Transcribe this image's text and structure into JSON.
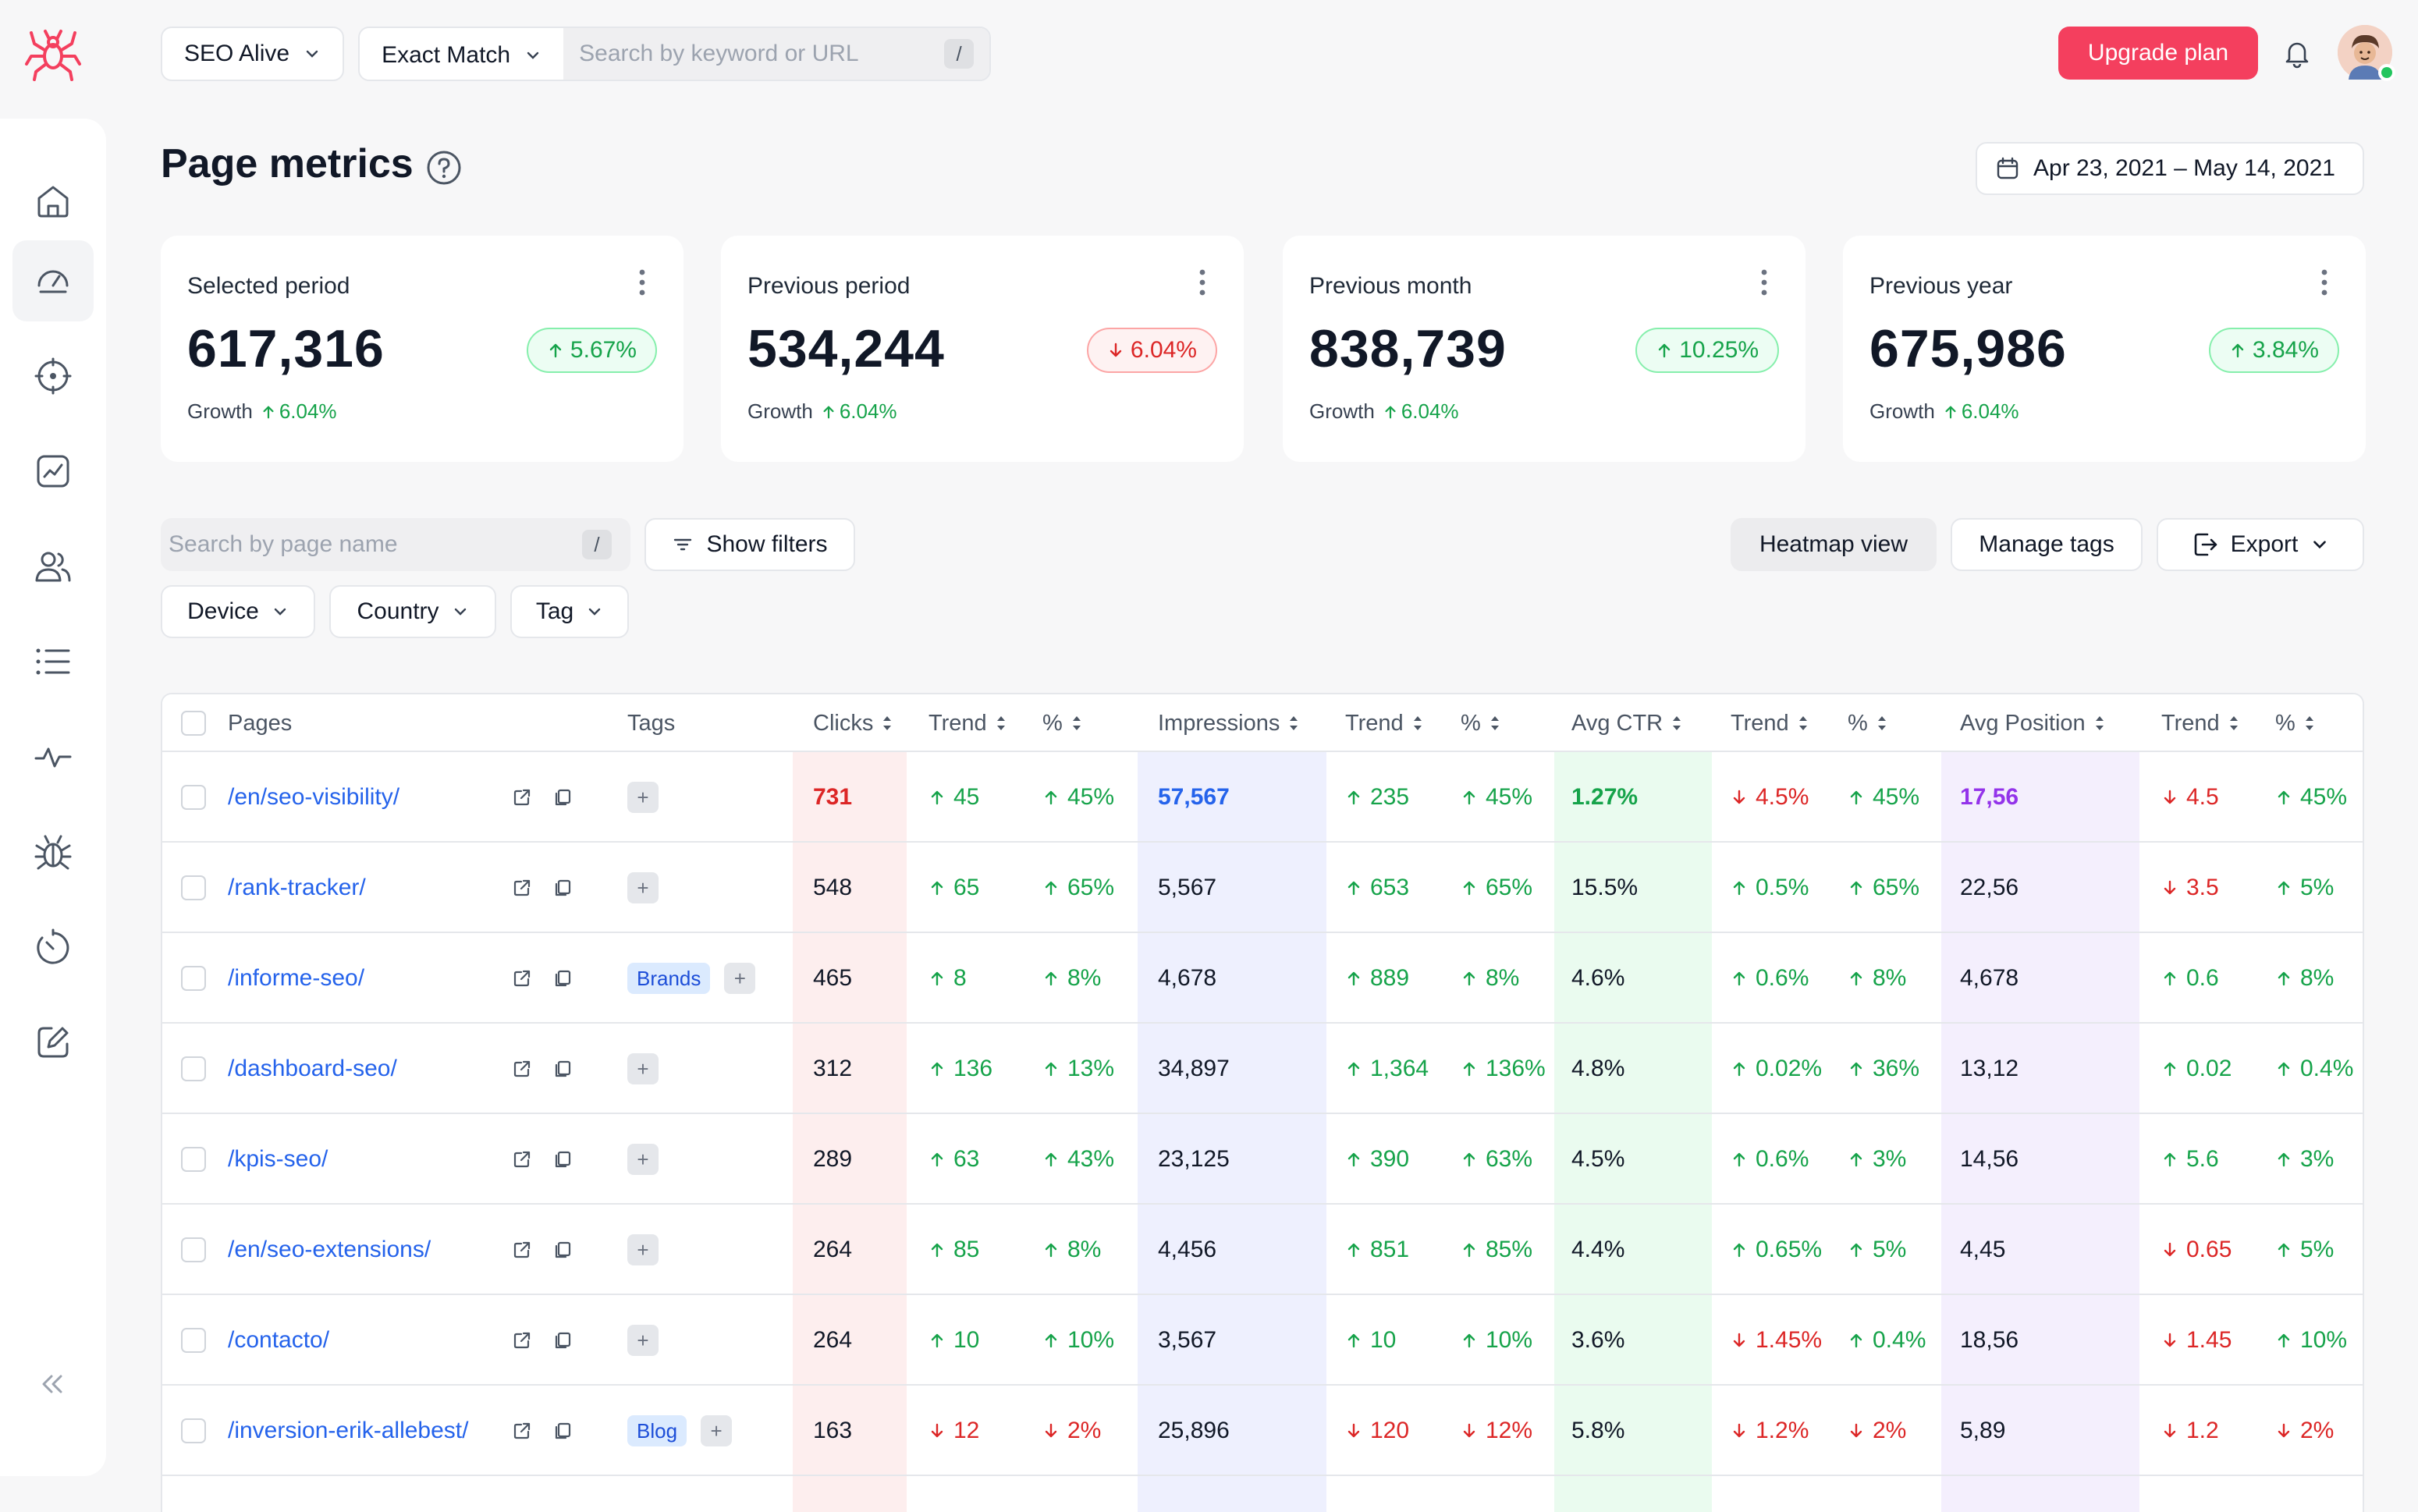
{
  "topbar": {
    "project": "SEO Alive",
    "match_type": "Exact Match",
    "search_placeholder": "Search by keyword or URL",
    "shortcut": "/",
    "upgrade_label": "Upgrade plan"
  },
  "colors": {
    "brand": "#f43f5e",
    "positive": "#16a34a",
    "negative": "#dc2626",
    "clicks_band": "#fdeeee",
    "impressions_band": "#eef0fe",
    "ctr_band": "#eafbef",
    "position_band": "#f4effd"
  },
  "page": {
    "title": "Page metrics",
    "date_range": "Apr 23, 2021 – May 14, 2021"
  },
  "cards": [
    {
      "label": "Selected period",
      "value": "617,316",
      "change": "5.67%",
      "direction": "up",
      "growth_label": "Growth",
      "growth": "6.04%"
    },
    {
      "label": "Previous period",
      "value": "534,244",
      "change": "6.04%",
      "direction": "down",
      "growth_label": "Growth",
      "growth": "6.04%"
    },
    {
      "label": "Previous month",
      "value": "838,739",
      "change": "10.25%",
      "direction": "up",
      "growth_label": "Growth",
      "growth": "6.04%"
    },
    {
      "label": "Previous year",
      "value": "675,986",
      "change": "3.84%",
      "direction": "up",
      "growth_label": "Growth",
      "growth": "6.04%"
    }
  ],
  "filters": {
    "search_placeholder": "Search by page name",
    "shortcut": "/",
    "show_filters": "Show filters",
    "heatmap": "Heatmap view",
    "manage_tags": "Manage tags",
    "export": "Export",
    "device": "Device",
    "country": "Country",
    "tag": "Tag"
  },
  "table": {
    "headers": {
      "pages": "Pages",
      "tags": "Tags",
      "clicks": "Clicks",
      "trend1": "Trend",
      "pct1": "%",
      "impressions": "Impressions",
      "trend2": "Trend",
      "pct2": "%",
      "ctr": "Avg CTR",
      "trend3": "Trend",
      "pct3": "%",
      "position": "Avg Position",
      "trend4": "Trend",
      "pct4": "%"
    },
    "rows": [
      {
        "page": "/en/seo-visibility/",
        "tags": [],
        "clicks": "731",
        "c_trend": "45",
        "c_trend_dir": "up",
        "c_pct": "45%",
        "c_pct_dir": "up",
        "impressions": "57,567",
        "i_trend": "235",
        "i_trend_dir": "up",
        "i_pct": "45%",
        "i_pct_dir": "up",
        "ctr": "1.27%",
        "ctr_trend": "4.5%",
        "ctr_trend_dir": "down",
        "ctr_pct": "45%",
        "ctr_pct_dir": "up",
        "position": "17,56",
        "p_trend": "4.5",
        "p_trend_dir": "down",
        "p_pct": "45%",
        "p_pct_dir": "up"
      },
      {
        "page": "/rank-tracker/",
        "tags": [],
        "clicks": "548",
        "c_trend": "65",
        "c_trend_dir": "up",
        "c_pct": "65%",
        "c_pct_dir": "up",
        "impressions": "5,567",
        "i_trend": "653",
        "i_trend_dir": "up",
        "i_pct": "65%",
        "i_pct_dir": "up",
        "ctr": "15.5%",
        "ctr_trend": "0.5%",
        "ctr_trend_dir": "up",
        "ctr_pct": "65%",
        "ctr_pct_dir": "up",
        "position": "22,56",
        "p_trend": "3.5",
        "p_trend_dir": "down",
        "p_pct": "5%",
        "p_pct_dir": "up"
      },
      {
        "page": "/informe-seo/",
        "tags": [
          "Brands"
        ],
        "clicks": "465",
        "c_trend": "8",
        "c_trend_dir": "up",
        "c_pct": "8%",
        "c_pct_dir": "up",
        "impressions": "4,678",
        "i_trend": "889",
        "i_trend_dir": "up",
        "i_pct": "8%",
        "i_pct_dir": "up",
        "ctr": "4.6%",
        "ctr_trend": "0.6%",
        "ctr_trend_dir": "up",
        "ctr_pct": "8%",
        "ctr_pct_dir": "up",
        "position": "4,678",
        "p_trend": "0.6",
        "p_trend_dir": "up",
        "p_pct": "8%",
        "p_pct_dir": "up"
      },
      {
        "page": "/dashboard-seo/",
        "tags": [],
        "clicks": "312",
        "c_trend": "136",
        "c_trend_dir": "up",
        "c_pct": "13%",
        "c_pct_dir": "up",
        "impressions": "34,897",
        "i_trend": "1,364",
        "i_trend_dir": "up",
        "i_pct": "136%",
        "i_pct_dir": "up",
        "ctr": "4.8%",
        "ctr_trend": "0.02%",
        "ctr_trend_dir": "up",
        "ctr_pct": "36%",
        "ctr_pct_dir": "up",
        "position": "13,12",
        "p_trend": "0.02",
        "p_trend_dir": "up",
        "p_pct": "0.4%",
        "p_pct_dir": "up"
      },
      {
        "page": "/kpis-seo/",
        "tags": [],
        "clicks": "289",
        "c_trend": "63",
        "c_trend_dir": "up",
        "c_pct": "43%",
        "c_pct_dir": "up",
        "impressions": "23,125",
        "i_trend": "390",
        "i_trend_dir": "up",
        "i_pct": "63%",
        "i_pct_dir": "up",
        "ctr": "4.5%",
        "ctr_trend": "0.6%",
        "ctr_trend_dir": "up",
        "ctr_pct": "3%",
        "ctr_pct_dir": "up",
        "position": "14,56",
        "p_trend": "5.6",
        "p_trend_dir": "up",
        "p_pct": "3%",
        "p_pct_dir": "up"
      },
      {
        "page": "/en/seo-extensions/",
        "tags": [],
        "clicks": "264",
        "c_trend": "85",
        "c_trend_dir": "up",
        "c_pct": "8%",
        "c_pct_dir": "up",
        "impressions": "4,456",
        "i_trend": "851",
        "i_trend_dir": "up",
        "i_pct": "85%",
        "i_pct_dir": "up",
        "ctr": "4.4%",
        "ctr_trend": "0.65%",
        "ctr_trend_dir": "up",
        "ctr_pct": "5%",
        "ctr_pct_dir": "up",
        "position": "4,45",
        "p_trend": "0.65",
        "p_trend_dir": "down",
        "p_pct": "5%",
        "p_pct_dir": "up"
      },
      {
        "page": "/contacto/",
        "tags": [],
        "clicks": "264",
        "c_trend": "10",
        "c_trend_dir": "up",
        "c_pct": "10%",
        "c_pct_dir": "up",
        "impressions": "3,567",
        "i_trend": "10",
        "i_trend_dir": "up",
        "i_pct": "10%",
        "i_pct_dir": "up",
        "ctr": "3.6%",
        "ctr_trend": "1.45%",
        "ctr_trend_dir": "down",
        "ctr_pct": "0.4%",
        "ctr_pct_dir": "up",
        "position": "18,56",
        "p_trend": "1.45",
        "p_trend_dir": "down",
        "p_pct": "10%",
        "p_pct_dir": "up"
      },
      {
        "page": "/inversion-erik-allebest/",
        "tags": [
          "Blog"
        ],
        "clicks": "163",
        "c_trend": "12",
        "c_trend_dir": "down",
        "c_pct": "2%",
        "c_pct_dir": "down",
        "impressions": "25,896",
        "i_trend": "120",
        "i_trend_dir": "down",
        "i_pct": "12%",
        "i_pct_dir": "down",
        "ctr": "5.8%",
        "ctr_trend": "1.2%",
        "ctr_trend_dir": "down",
        "ctr_pct": "2%",
        "ctr_pct_dir": "down",
        "position": "5,89",
        "p_trend": "1.2",
        "p_trend_dir": "down",
        "p_pct": "2%",
        "p_pct_dir": "down"
      }
    ]
  }
}
